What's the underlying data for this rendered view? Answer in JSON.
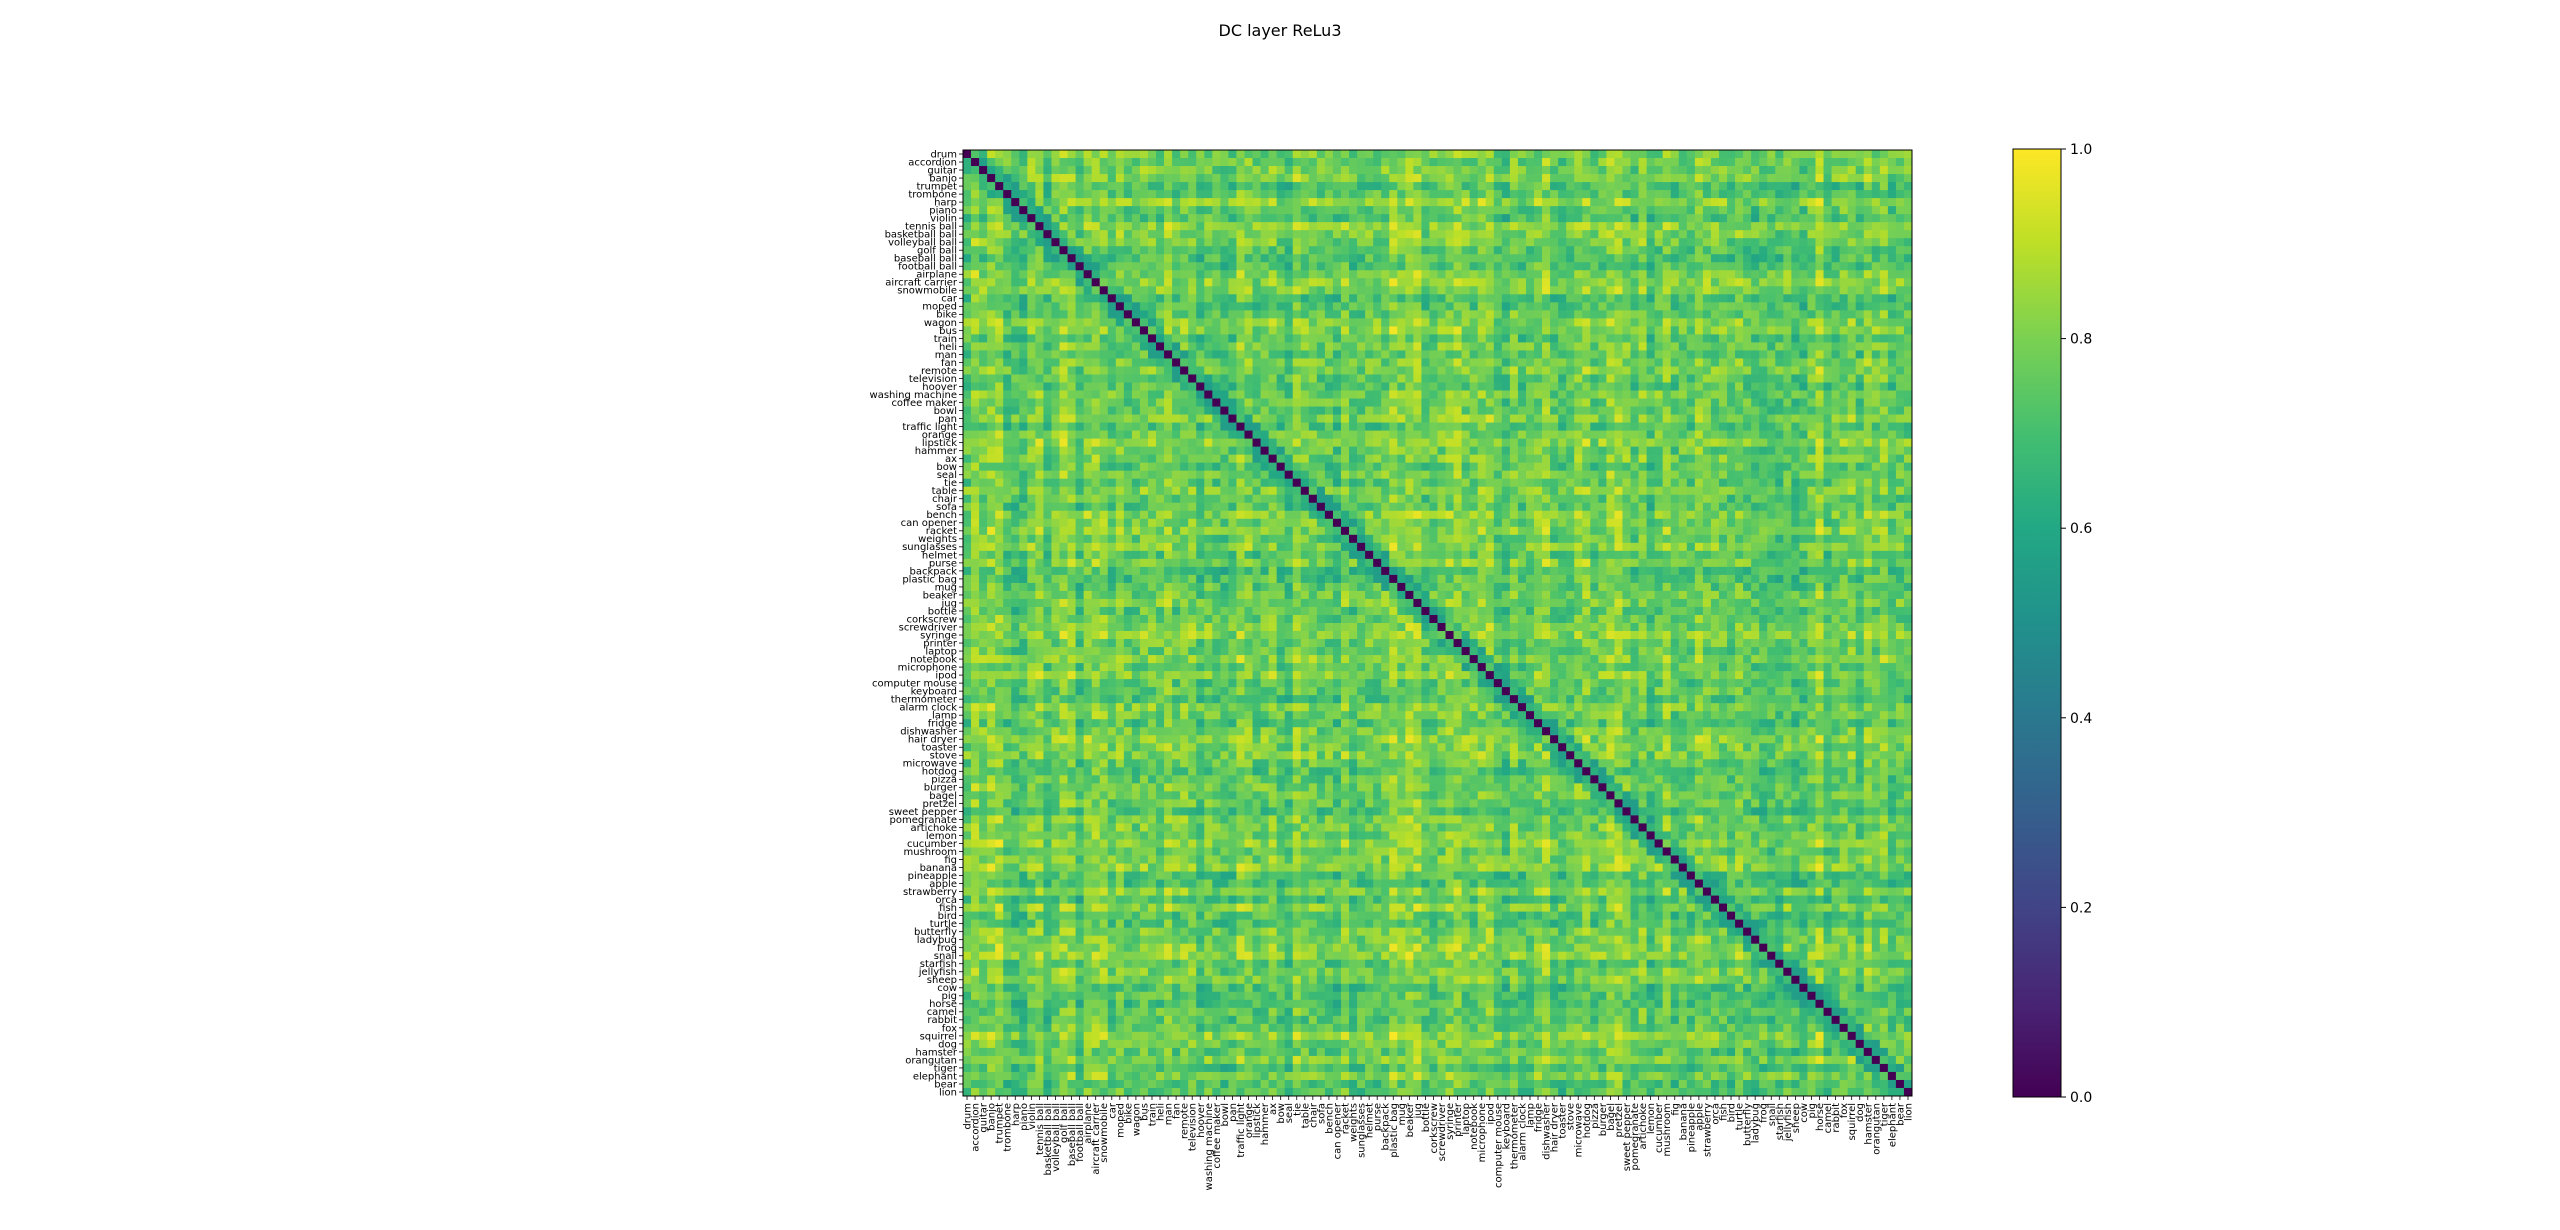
{
  "chart_data": {
    "type": "heatmap",
    "title": "DC layer ReLu3",
    "categories": [
      "drum",
      "accordion",
      "guitar",
      "banjo",
      "trumpet",
      "trombone",
      "harp",
      "piano",
      "violin",
      "tennis ball",
      "basketball ball",
      "volleyball ball",
      "golf ball",
      "baseball ball",
      "football ball",
      "airplane",
      "aircraft carrier",
      "snowmobile",
      "car",
      "moped",
      "bike",
      "wagon",
      "bus",
      "train",
      "heli",
      "man",
      "fan",
      "remote",
      "television",
      "hoover",
      "washing machine",
      "coffee maker",
      "bowl",
      "pan",
      "traffic light",
      "orange",
      "lipstick",
      "hammer",
      "ax",
      "bow",
      "seal",
      "tie",
      "table",
      "chair",
      "sofa",
      "bench",
      "can opener",
      "racket",
      "weights",
      "sunglasses",
      "helmet",
      "purse",
      "backpack",
      "plastic bag",
      "mug",
      "beaker",
      "jug",
      "bottle",
      "corkscrew",
      "screwdriver",
      "syringe",
      "printer",
      "laptop",
      "notebook",
      "microphone",
      "ipod",
      "computer mouse",
      "keyboard",
      "thermometer",
      "alarm clock",
      "lamp",
      "fridge",
      "dishwasher",
      "hair dryer",
      "toaster",
      "stove",
      "microwave",
      "hotdog",
      "pizza",
      "burger",
      "bagel",
      "pretzel",
      "sweet pepper",
      "pomegranate",
      "artichoke",
      "lemon",
      "cucumber",
      "mushroom",
      "fig",
      "banana",
      "pineapple",
      "apple",
      "strawberry",
      "orca",
      "fish",
      "bird",
      "turtle",
      "butterfly",
      "ladybug",
      "frog",
      "snail",
      "starfish",
      "jellyfish",
      "sheep",
      "cow",
      "pig",
      "horse",
      "camel",
      "rabbit",
      "fox",
      "squirrel",
      "dog",
      "hamster",
      "orangutan",
      "tiger",
      "elephant",
      "bear",
      "lion"
    ],
    "colormap": "viridis",
    "vmin": 0.0,
    "vmax": 1.0,
    "colorbar_ticks": [
      "0.0",
      "0.2",
      "0.4",
      "0.6",
      "0.8",
      "1.0"
    ],
    "diagonal_value": 0.0,
    "value_range_offdiagonal": [
      0.55,
      1.0
    ],
    "seed": 7
  }
}
